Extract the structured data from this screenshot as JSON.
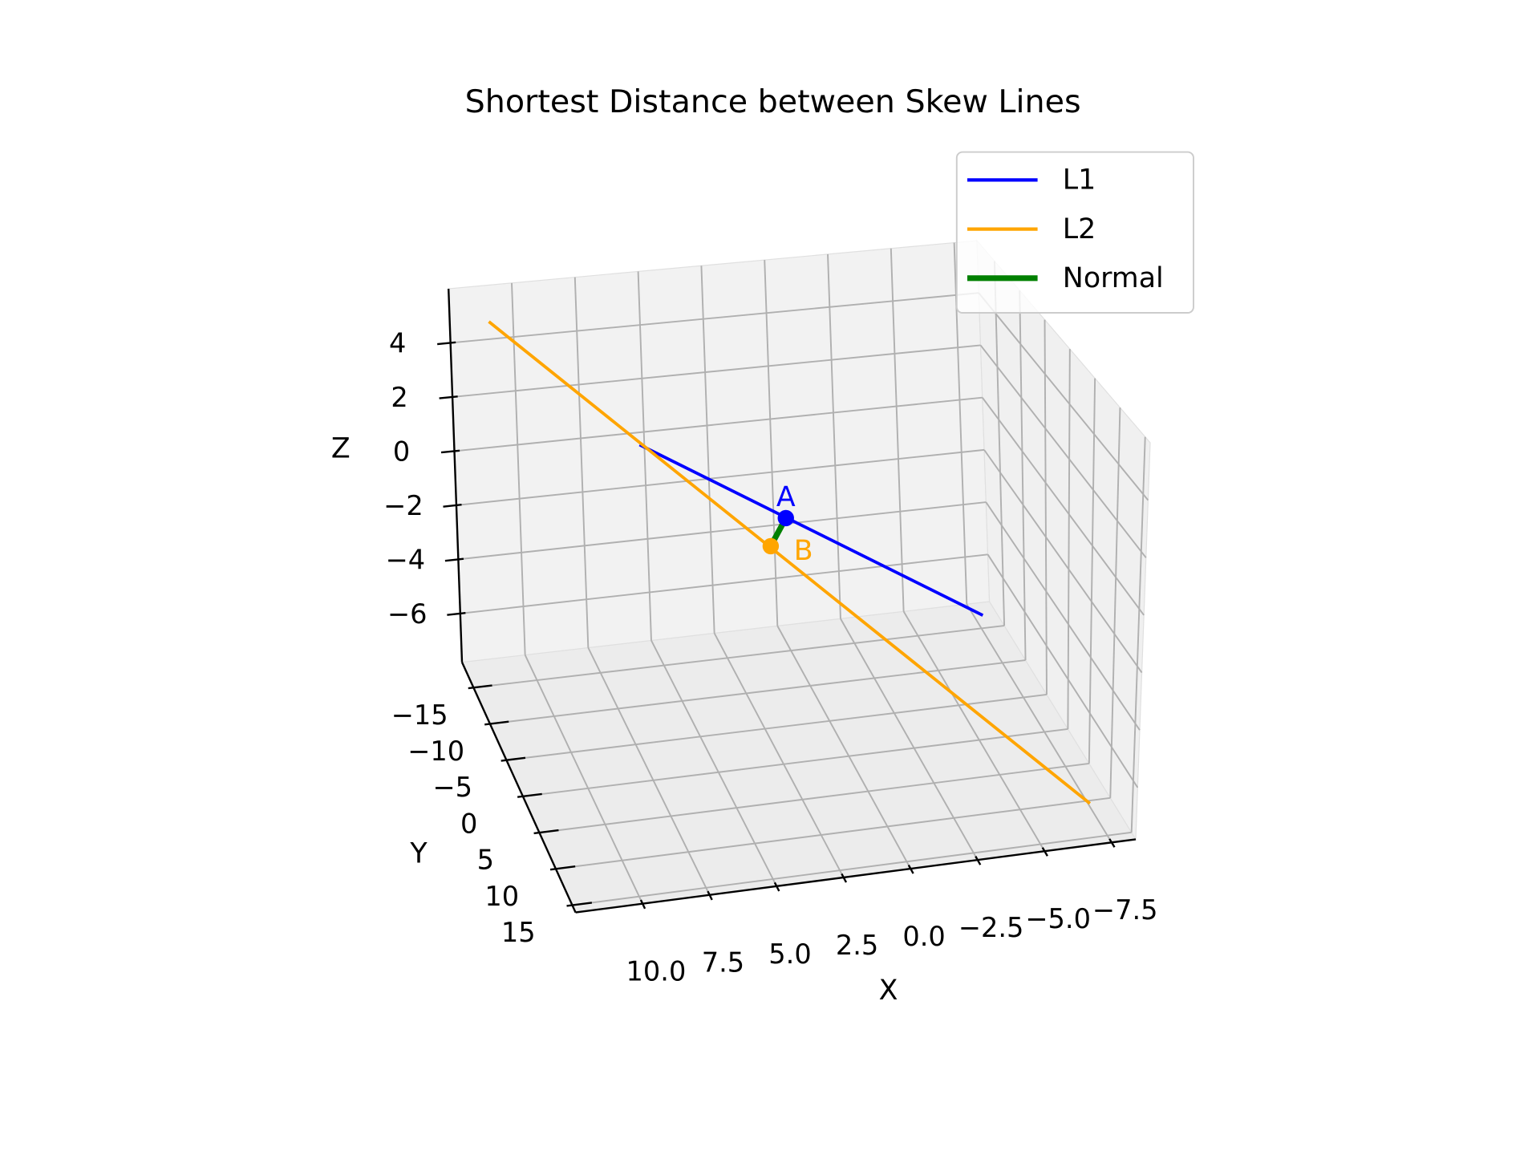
{
  "chart_data": {
    "type": "line3d",
    "title": "Shortest Distance between Skew Lines",
    "x_label": "X",
    "y_label": "Y",
    "z_label": "Z",
    "series": [
      {
        "name": "L1",
        "color": "#0000ff",
        "x": [
          6.5,
          -3.4
        ],
        "y": [
          -10,
          10
        ],
        "z": [
          1.7,
          -0.8
        ]
      },
      {
        "name": "L2",
        "color": "#ffa500",
        "x": [
          11.5,
          -6.8
        ],
        "y": [
          -15,
          15
        ],
        "z": [
          5.5,
          -6.6
        ]
      },
      {
        "name": "Normal",
        "color": "#008000",
        "x": [
          2.24,
          2.9
        ],
        "y": [
          -1.4,
          -0.9
        ],
        "z": [
          0.63,
          -0.19
        ]
      }
    ],
    "points": [
      {
        "label": "A",
        "color": "#0000ff",
        "x": 2.24,
        "y": -1.4,
        "z": 0.63
      },
      {
        "label": "B",
        "color": "#ffa500",
        "x": 2.9,
        "y": -0.9,
        "z": -0.19
      }
    ],
    "xlim": [
      -8.4,
      12.5
    ],
    "ylim": [
      -18.5,
      16
    ],
    "zlim": [
      -7.8,
      6
    ],
    "xticks": [
      {
        "value": -7.5,
        "label": "−7.5"
      },
      {
        "value": -5,
        "label": "−5.0"
      },
      {
        "value": -2.5,
        "label": "−2.5"
      },
      {
        "value": 0,
        "label": "0.0"
      },
      2.5,
      {
        "value": 5,
        "label": "5.0"
      },
      7.5,
      {
        "value": 10,
        "label": "10.0"
      }
    ],
    "yticks": [
      {
        "value": -15,
        "label": "−15"
      },
      {
        "value": -10,
        "label": "−10"
      },
      {
        "value": -5,
        "label": "−5"
      },
      0,
      5,
      10,
      15
    ],
    "zticks": [
      {
        "value": -6,
        "label": "−6"
      },
      {
        "value": -4,
        "label": "−4"
      },
      {
        "value": -2,
        "label": "−2"
      },
      0,
      2,
      4
    ],
    "grid": true,
    "legend": "upper right"
  }
}
